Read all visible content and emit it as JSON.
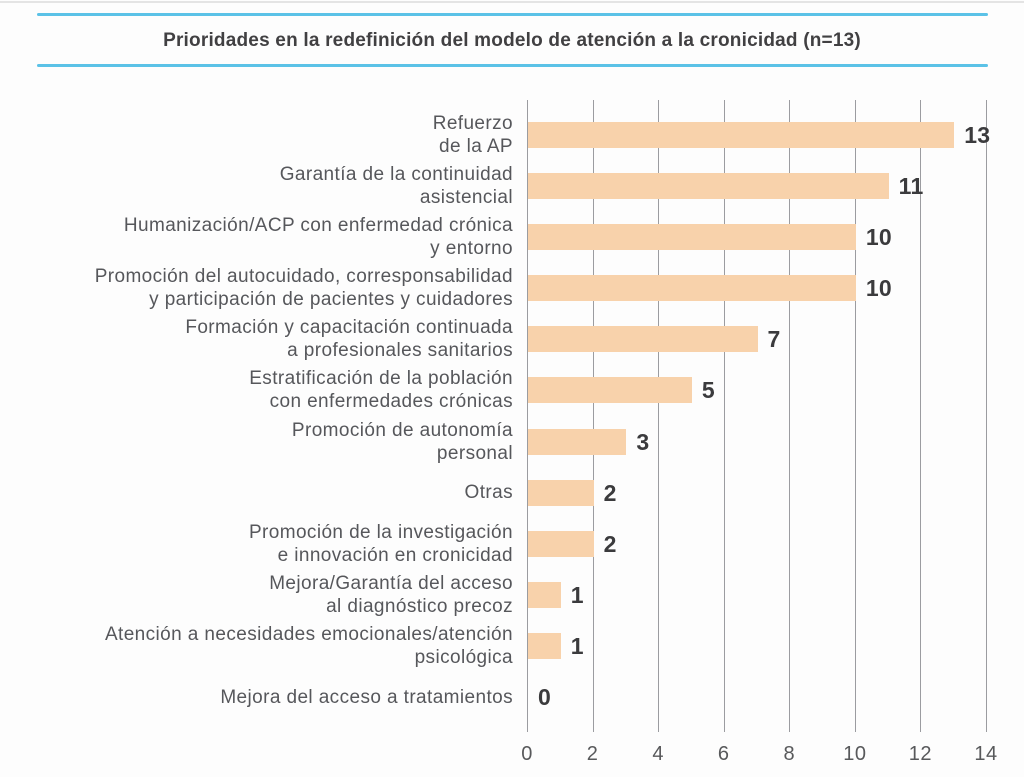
{
  "header": {
    "title": "Prioridades en la redefinición del modelo de atención a la cronicidad (n=13)",
    "rule_color": "#5bc2e7"
  },
  "colors": {
    "accent_blue": "#5bc2e7",
    "bar_fill": "#f8d2ab",
    "gridline": "#9b9ca0",
    "title_text": "#414042",
    "category_text": "#56575b",
    "value_text": "#3b3b3d",
    "tick_text": "#58595b",
    "top_border": "#d7d7d7"
  },
  "chart_data": {
    "type": "bar",
    "orientation": "horizontal",
    "title": "Prioridades en la redefinición del modelo de atención a la cronicidad (n=13)",
    "categories": [
      [
        "Refuerzo",
        "de la AP"
      ],
      [
        "Garantía de la continuidad",
        "asistencial"
      ],
      [
        "Humanización/ACP con enfermedad crónica",
        "y entorno"
      ],
      [
        "Promoción del autocuidado, corresponsabilidad",
        "y participación de pacientes y cuidadores"
      ],
      [
        "Formación y capacitación continuada",
        "a profesionales sanitarios"
      ],
      [
        "Estratificación de la población",
        "con enfermedades crónicas"
      ],
      [
        "Promoción de autonomía",
        "personal"
      ],
      [
        "Otras"
      ],
      [
        "Promoción de la investigación",
        "e innovación en cronicidad"
      ],
      [
        "Mejora/Garantía del acceso",
        "al diagnóstico precoz"
      ],
      [
        "Atención a necesidades emocionales/atención",
        "psicológica"
      ],
      [
        "Mejora del acceso a tratamientos"
      ]
    ],
    "values": [
      13,
      11,
      10,
      10,
      7,
      5,
      3,
      2,
      2,
      1,
      1,
      0
    ],
    "value_labels": [
      "13",
      "11",
      "10",
      "10",
      "7",
      "5",
      "3",
      "2",
      "2",
      "1",
      "1",
      "0"
    ],
    "xlabel": "",
    "ylabel": "",
    "xlim": [
      0,
      14
    ],
    "xticks": [
      0,
      2,
      4,
      6,
      8,
      10,
      12,
      14
    ],
    "xtick_labels": [
      "0",
      "2",
      "4",
      "6",
      "8",
      "10",
      "12",
      "14"
    ],
    "grid": "vertical",
    "legend": "none"
  }
}
